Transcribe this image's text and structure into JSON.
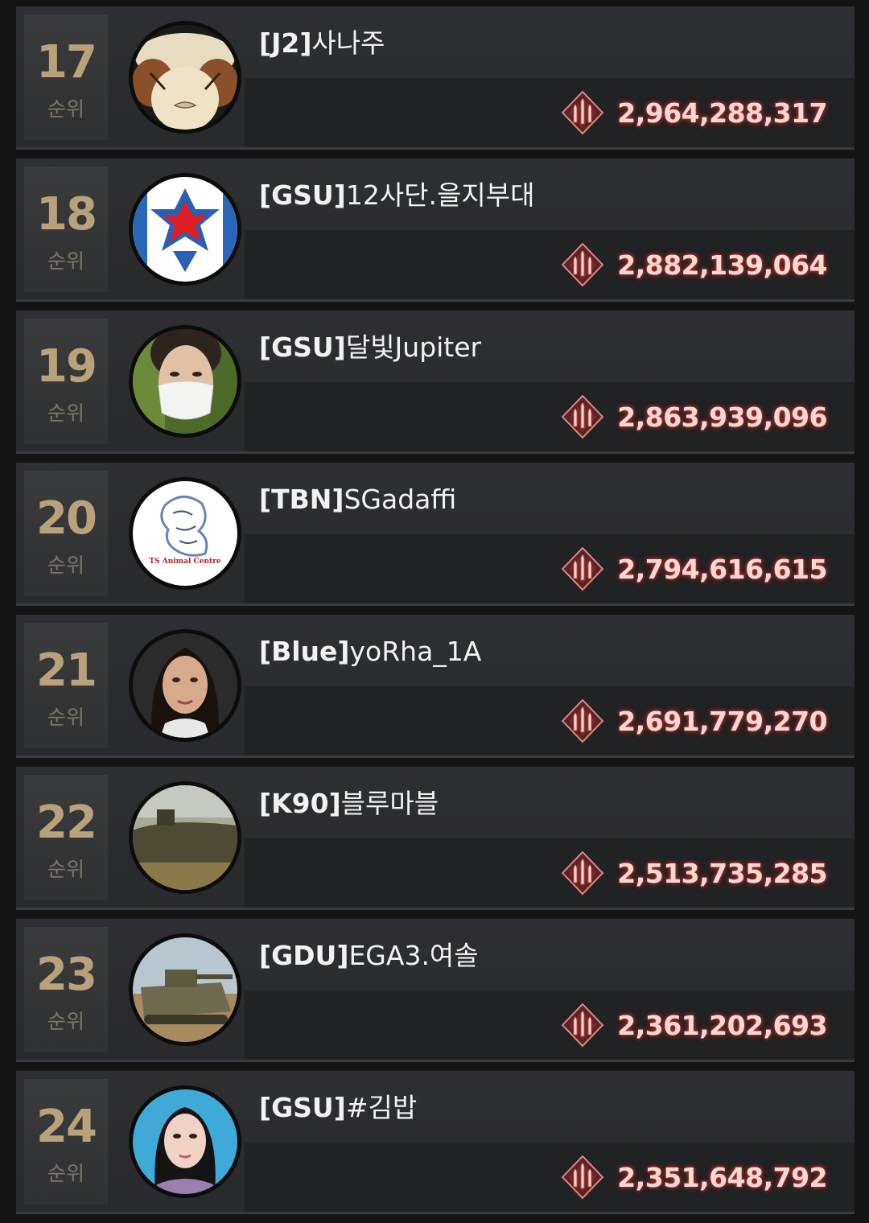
{
  "rank_label": "순위",
  "entries": [
    {
      "rank": "17",
      "tag": "[J2]",
      "name": "사나주",
      "score": "2,964,288,317",
      "avatar": "sheep-avatar"
    },
    {
      "rank": "18",
      "tag": "[GSU]",
      "name": "12사단.을지부대",
      "score": "2,882,139,064",
      "avatar": "star-emblem-avatar"
    },
    {
      "rank": "19",
      "tag": "[GSU]",
      "name": "달빛Jupiter",
      "score": "2,863,939,096",
      "avatar": "masked-person-avatar"
    },
    {
      "rank": "20",
      "tag": "[TBN]",
      "name": "SGadaffi",
      "score": "2,794,616,615",
      "avatar": "animal-centre-logo-avatar",
      "avatar_text": "TS Animal Centre"
    },
    {
      "rank": "21",
      "tag": "[Blue]",
      "name": "yoRha_1A",
      "score": "2,691,779,270",
      "avatar": "woman-portrait-avatar"
    },
    {
      "rank": "22",
      "tag": "[K90]",
      "name": "블루마블",
      "score": "2,513,735,285",
      "avatar": "submarine-avatar"
    },
    {
      "rank": "23",
      "tag": "[GDU]",
      "name": "EGA3.여솔",
      "score": "2,361,202,693",
      "avatar": "tank-avatar"
    },
    {
      "rank": "24",
      "tag": "[GSU]",
      "name": "#김밥",
      "score": "2,351,648,792",
      "avatar": "idol-portrait-avatar"
    }
  ],
  "colors": {
    "rank_number": "#b9a27a",
    "score_text": "#ffd7d3",
    "score_glow": "#c2423e",
    "row_background": "#2e2f32"
  },
  "icons": {
    "score": "ammo-bullets-icon"
  }
}
